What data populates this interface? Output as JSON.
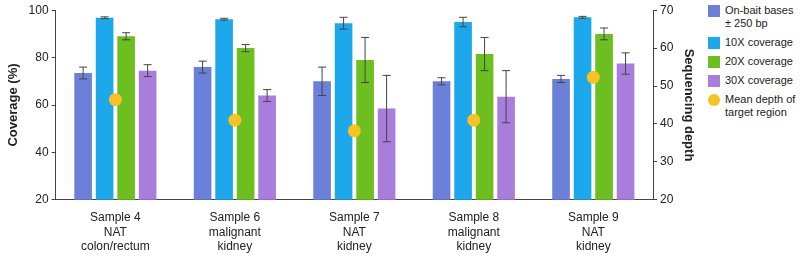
{
  "chart_data": {
    "type": "bar",
    "categories": [
      [
        "Sample 4",
        "NAT",
        "colon/rectum"
      ],
      [
        "Sample 6",
        "malignant",
        "kidney"
      ],
      [
        "Sample 7",
        "NAT",
        "kidney"
      ],
      [
        "Sample 8",
        "malignant",
        "kidney"
      ],
      [
        "Sample 9",
        "NAT",
        "kidney"
      ]
    ],
    "series": [
      {
        "name": "On-bait bases ± 250 bp",
        "color": "#6b80d8",
        "values": [
          73.5,
          76,
          70,
          70,
          71
        ],
        "errors": [
          2.5,
          2.5,
          6,
          1.5,
          1.5
        ]
      },
      {
        "name": "10X coverage",
        "color": "#1ea8ec",
        "values": [
          96.8,
          96.2,
          94.5,
          95,
          97
        ],
        "errors": [
          0.4,
          0.4,
          2.5,
          2,
          0.4
        ]
      },
      {
        "name": "20X coverage",
        "color": "#6cbf1f",
        "values": [
          89,
          84,
          79,
          81.5,
          90
        ],
        "errors": [
          1.5,
          1.5,
          9.5,
          7,
          2.5
        ]
      },
      {
        "name": "30X coverage",
        "color": "#a97ddc",
        "values": [
          74.5,
          64,
          58.5,
          63.5,
          77.5
        ],
        "errors": [
          2.5,
          2.5,
          14,
          11,
          4.5
        ]
      },
      {
        "name": "Mean depth of target region",
        "color": "#f8c322",
        "type": "scatter",
        "marker": "circle",
        "axis": "y2",
        "values": [
          46.4,
          41,
          38.2,
          41,
          52.3
        ]
      }
    ],
    "ylabel": "Coverage (%)",
    "y2label": "Sequencing depth",
    "ylim": [
      20,
      100
    ],
    "yticks": [
      20,
      40,
      60,
      80,
      100
    ],
    "y2lim": [
      20,
      70
    ],
    "y2ticks": [
      20,
      30,
      40,
      50,
      60,
      70
    ],
    "grid": false,
    "legend": "right"
  }
}
